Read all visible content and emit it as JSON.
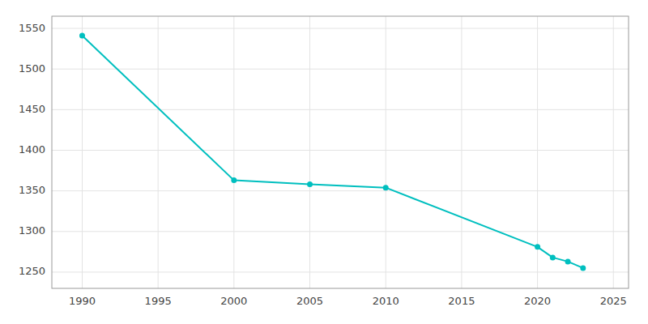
{
  "chart_data": {
    "type": "line",
    "x": [
      1990,
      2000,
      2005,
      2010,
      2020,
      2021,
      2022,
      2023
    ],
    "values": [
      1541,
      1363,
      1358,
      1354,
      1281,
      1268,
      1263,
      1255
    ],
    "color": "#00BFBF",
    "marker": "circle",
    "xlim": [
      1988,
      2026
    ],
    "ylim": [
      1230,
      1565
    ],
    "xticks": [
      1990,
      1995,
      2000,
      2005,
      2010,
      2015,
      2020,
      2025
    ],
    "yticks": [
      1250,
      1300,
      1350,
      1400,
      1450,
      1500,
      1550
    ],
    "grid": true
  }
}
